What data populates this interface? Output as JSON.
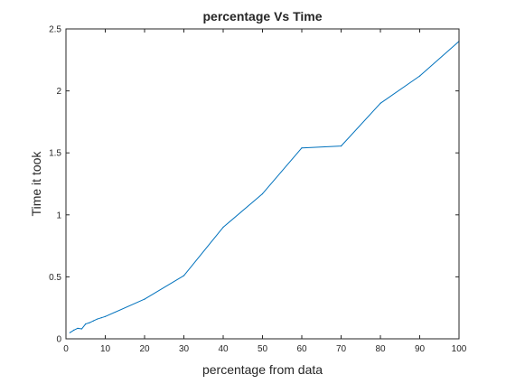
{
  "chart_data": {
    "type": "line",
    "title": "percentage Vs Time",
    "xlabel": "percentage from data",
    "ylabel": "Time it took",
    "xlim": [
      0,
      100
    ],
    "ylim": [
      0,
      2.5
    ],
    "xticks": [
      0,
      10,
      20,
      30,
      40,
      50,
      60,
      70,
      80,
      90,
      100
    ],
    "yticks": [
      0,
      0.5,
      1,
      1.5,
      2,
      2.5
    ],
    "xtick_labels": [
      "0",
      "10",
      "20",
      "30",
      "40",
      "50",
      "60",
      "70",
      "80",
      "90",
      "100"
    ],
    "ytick_labels": [
      "0",
      "0.5",
      "1",
      "1.5",
      "2",
      "2.5"
    ],
    "grid": false,
    "legend": null,
    "series": [
      {
        "color": "#0072bd",
        "x": [
          1,
          2,
          3,
          4,
          5,
          6,
          7,
          8,
          9,
          10,
          20,
          30,
          40,
          50,
          60,
          70,
          80,
          90,
          100
        ],
        "y": [
          0.05,
          0.07,
          0.085,
          0.08,
          0.12,
          0.13,
          0.145,
          0.16,
          0.17,
          0.18,
          0.32,
          0.51,
          0.9,
          1.17,
          1.54,
          1.555,
          1.9,
          2.12,
          2.4
        ]
      }
    ]
  }
}
